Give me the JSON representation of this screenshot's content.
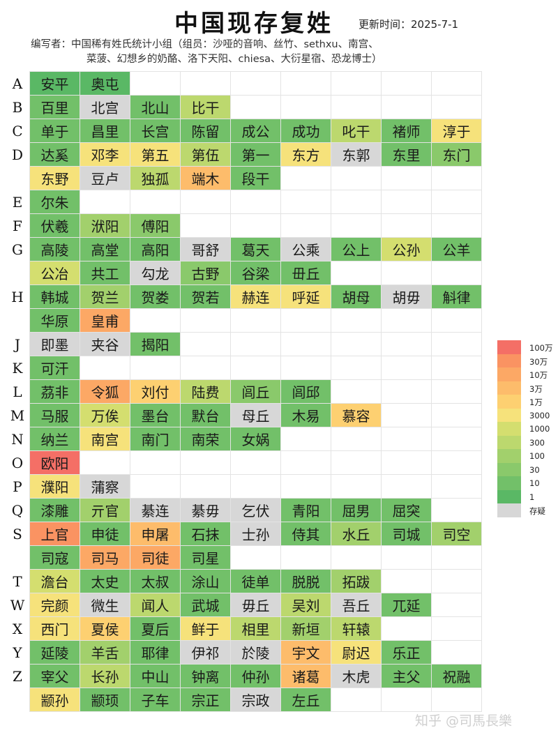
{
  "header": {
    "title": "中国现存复姓",
    "update": "更新时间：2025-7-1",
    "authors_line1": "编写者：中国稀有姓氏统计小组（组员：沙哑的音响、丝竹、sethxu、南宫、",
    "authors_line2": "菜菠、幻想乡的奶酪、洛下天阳、chiesa、大衍星宿、恐龙博士）"
  },
  "palette": {
    "0": "#d7d7d7",
    "1": "#5ab865",
    "2": "#72c069",
    "3": "#8ac96b",
    "4": "#a2d06c",
    "5": "#bcd86e",
    "6": "#d4de6f",
    "7": "#f6e27b",
    "8": "#fdd071",
    "9": "#fdbc6b",
    "10": "#fca865",
    "11": "#fa9362",
    "12": "#f46f66"
  },
  "legend": [
    {
      "label": "100万",
      "level": 12
    },
    {
      "label": "30万",
      "level": 11
    },
    {
      "label": "10万",
      "level": 10
    },
    {
      "label": "3万",
      "level": 9
    },
    {
      "label": "1万",
      "level": 8
    },
    {
      "label": "3000",
      "level": 7
    },
    {
      "label": "1000",
      "level": 6
    },
    {
      "label": "300",
      "level": 5
    },
    {
      "label": "100",
      "level": 4
    },
    {
      "label": "30",
      "level": 3
    },
    {
      "label": "10",
      "level": 2
    },
    {
      "label": "1",
      "level": 1
    },
    {
      "label": "存疑",
      "level": 0
    }
  ],
  "rows": [
    {
      "letter": "A",
      "cells": [
        [
          "安平",
          1
        ],
        [
          "奥屯",
          1
        ]
      ]
    },
    {
      "letter": "B",
      "cells": [
        [
          "百里",
          2
        ],
        [
          "北宫",
          0
        ],
        [
          "北山",
          2
        ],
        [
          "比干",
          5
        ]
      ]
    },
    {
      "letter": "C",
      "cells": [
        [
          "单于",
          2
        ],
        [
          "昌里",
          2
        ],
        [
          "长宫",
          2
        ],
        [
          "陈留",
          2
        ],
        [
          "成公",
          2
        ],
        [
          "成功",
          2
        ],
        [
          "叱干",
          5
        ],
        [
          "褚师",
          2
        ],
        [
          "淳于",
          7
        ]
      ]
    },
    {
      "letter": "D",
      "cells": [
        [
          "达奚",
          2
        ],
        [
          "邓李",
          7
        ],
        [
          "第五",
          7
        ],
        [
          "第伍",
          5
        ],
        [
          "第一",
          2
        ],
        [
          "东方",
          7
        ],
        [
          "东郭",
          0
        ],
        [
          "东里",
          2
        ],
        [
          "东门",
          3
        ]
      ]
    },
    {
      "letter": "",
      "cells": [
        [
          "东野",
          7
        ],
        [
          "豆卢",
          0
        ],
        [
          "独孤",
          5
        ],
        [
          "端木",
          9
        ],
        [
          "段干",
          2
        ]
      ]
    },
    {
      "letter": "E",
      "cells": [
        [
          "尔朱",
          2
        ]
      ]
    },
    {
      "letter": "F",
      "cells": [
        [
          "伏羲",
          2
        ],
        [
          "洑阳",
          4
        ],
        [
          "傅阳",
          3
        ]
      ]
    },
    {
      "letter": "G",
      "cells": [
        [
          "高陵",
          2
        ],
        [
          "高堂",
          2
        ],
        [
          "高阳",
          2
        ],
        [
          "哥舒",
          0
        ],
        [
          "葛天",
          2
        ],
        [
          "公乘",
          0
        ],
        [
          "公上",
          2
        ],
        [
          "公孙",
          6
        ],
        [
          "公羊",
          2
        ]
      ]
    },
    {
      "letter": "",
      "cells": [
        [
          "公冶",
          6
        ],
        [
          "共工",
          2
        ],
        [
          "勾龙",
          0
        ],
        [
          "古野",
          3
        ],
        [
          "谷梁",
          2
        ],
        [
          "毌丘",
          2
        ]
      ]
    },
    {
      "letter": "H",
      "cells": [
        [
          "韩城",
          2
        ],
        [
          "贺兰",
          4
        ],
        [
          "贺娄",
          2
        ],
        [
          "贺若",
          2
        ],
        [
          "赫连",
          7
        ],
        [
          "呼延",
          7
        ],
        [
          "胡母",
          2
        ],
        [
          "胡毋",
          0
        ],
        [
          "斛律",
          2
        ]
      ]
    },
    {
      "letter": "",
      "cells": [
        [
          "华原",
          2
        ],
        [
          "皇甫",
          10
        ]
      ]
    },
    {
      "letter": "J",
      "cells": [
        [
          "即墨",
          0
        ],
        [
          "夹谷",
          0
        ],
        [
          "揭阳",
          2
        ]
      ]
    },
    {
      "letter": "K",
      "cells": [
        [
          "可汗",
          2
        ]
      ]
    },
    {
      "letter": "L",
      "cells": [
        [
          "茘非",
          2
        ],
        [
          "令狐",
          10
        ],
        [
          "刘付",
          8
        ],
        [
          "陆费",
          5
        ],
        [
          "闾丘",
          3
        ],
        [
          "闾邱",
          2
        ]
      ]
    },
    {
      "letter": "M",
      "cells": [
        [
          "马服",
          2
        ],
        [
          "万俟",
          6
        ],
        [
          "墨台",
          2
        ],
        [
          "默台",
          2
        ],
        [
          "母丘",
          0
        ],
        [
          "木易",
          2
        ],
        [
          "慕容",
          8
        ]
      ]
    },
    {
      "letter": "N",
      "cells": [
        [
          "纳兰",
          2
        ],
        [
          "南宫",
          7
        ],
        [
          "南门",
          2
        ],
        [
          "南荣",
          2
        ],
        [
          "女娲",
          2
        ]
      ]
    },
    {
      "letter": "O",
      "cells": [
        [
          "欧阳",
          12
        ]
      ]
    },
    {
      "letter": "P",
      "cells": [
        [
          "濮阳",
          7
        ],
        [
          "蒲察",
          0
        ]
      ]
    },
    {
      "letter": "Q",
      "cells": [
        [
          "漆雕",
          2
        ],
        [
          "亓官",
          4
        ],
        [
          "綦连",
          0
        ],
        [
          "綦毋",
          0
        ],
        [
          "乞伏",
          0
        ],
        [
          "青阳",
          2
        ],
        [
          "屈男",
          2
        ],
        [
          "屈突",
          2
        ]
      ]
    },
    {
      "letter": "S",
      "cells": [
        [
          "上官",
          11
        ],
        [
          "申徒",
          2
        ],
        [
          "申屠",
          9
        ],
        [
          "石抹",
          2
        ],
        [
          "士孙",
          0
        ],
        [
          "侍其",
          2
        ],
        [
          "水丘",
          4
        ],
        [
          "司城",
          2
        ],
        [
          "司空",
          4
        ]
      ]
    },
    {
      "letter": "",
      "cells": [
        [
          "司寇",
          2
        ],
        [
          "司马",
          10
        ],
        [
          "司徒",
          10
        ],
        [
          "司星",
          2
        ]
      ]
    },
    {
      "letter": "T",
      "cells": [
        [
          "澹台",
          6
        ],
        [
          "太史",
          2
        ],
        [
          "太叔",
          2
        ],
        [
          "涂山",
          2
        ],
        [
          "徒单",
          2
        ],
        [
          "脱脱",
          2
        ],
        [
          "拓跋",
          4
        ]
      ]
    },
    {
      "letter": "W",
      "cells": [
        [
          "完颜",
          7
        ],
        [
          "微生",
          0
        ],
        [
          "闻人",
          5
        ],
        [
          "武城",
          2
        ],
        [
          "毋丘",
          0
        ],
        [
          "吴刘",
          5
        ],
        [
          "吾丘",
          0
        ],
        [
          "兀延",
          2
        ]
      ]
    },
    {
      "letter": "X",
      "cells": [
        [
          "西门",
          7
        ],
        [
          "夏侯",
          8
        ],
        [
          "夏后",
          2
        ],
        [
          "鲜于",
          7
        ],
        [
          "相里",
          5
        ],
        [
          "新垣",
          4
        ],
        [
          "轩辕",
          5
        ]
      ]
    },
    {
      "letter": "Y",
      "cells": [
        [
          "延陵",
          2
        ],
        [
          "羊舌",
          4
        ],
        [
          "耶律",
          2
        ],
        [
          "伊祁",
          0
        ],
        [
          "於陵",
          0
        ],
        [
          "宇文",
          9
        ],
        [
          "尉迟",
          7
        ],
        [
          "乐正",
          2
        ]
      ]
    },
    {
      "letter": "Z",
      "cells": [
        [
          "宰父",
          2
        ],
        [
          "长孙",
          5
        ],
        [
          "中山",
          2
        ],
        [
          "钟离",
          2
        ],
        [
          "仲孙",
          2
        ],
        [
          "诸葛",
          9
        ],
        [
          "木虎",
          0
        ],
        [
          "主父",
          2
        ],
        [
          "祝融",
          2
        ]
      ]
    },
    {
      "letter": "",
      "cells": [
        [
          "颛孙",
          7
        ],
        [
          "颛顼",
          2
        ],
        [
          "子车",
          2
        ],
        [
          "宗正",
          2
        ],
        [
          "宗政",
          0
        ],
        [
          "左丘",
          2
        ]
      ]
    }
  ],
  "watermark": "知乎 @司馬長樂"
}
